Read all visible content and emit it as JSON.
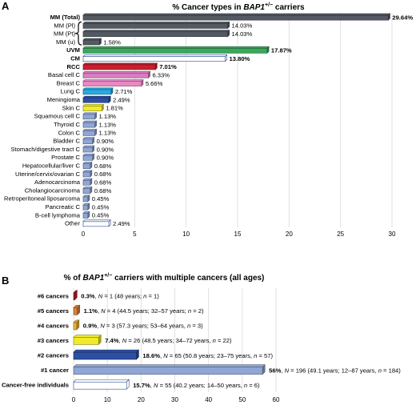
{
  "panels": {
    "a_label": "A",
    "b_label": "B"
  },
  "colors": {
    "total": "#545a63",
    "uvm": "#3aa85a",
    "cm": "#ffffff",
    "rcc": "#c8202f",
    "basal": "#d97cc0",
    "breast": "#e68ac4",
    "lung": "#29a9df",
    "meningioma": "#2c4fa2",
    "skin": "#f0ea2a",
    "other": "#8fa6d6",
    "c6": "#c8202f",
    "c5": "#d9803c",
    "c4": "#e8b23c",
    "c3": "#f0ea2a",
    "c2": "#2c4fa2",
    "c1": "#8fa6d6",
    "free": "#ffffff",
    "outline": "#2a4d8f"
  },
  "chart_data": [
    {
      "type": "bar",
      "orientation": "horizontal",
      "title_pre": "% Cancer types in ",
      "title_gene": "BAP1",
      "title_sup": "+/−",
      "title_post": " carriers",
      "xlim": [
        0,
        30
      ],
      "xticks": [
        "0",
        "5",
        "10",
        "15",
        "20",
        "25",
        "30"
      ],
      "grid": true,
      "categories": [
        "MM (Total)",
        "MM (Pl)",
        "MM (Pt)",
        "MM (u)",
        "UVM",
        "CM",
        "RCC",
        "Basal cell C",
        "Breast C",
        "Lung C",
        "Meningioma",
        "Skin C",
        "Squamous cell C",
        "Thyroid C",
        "Colon C",
        "Bladder C",
        "Stomach/digestive tract C",
        "Prostate C",
        "Hepatocellular/liver C",
        "Uterine/cervix/ovarian C",
        "Adenocarcinoma",
        "Cholangiocarcinoma",
        "Retroperitoneal liposarcoma",
        "Pancreatic C",
        "B-cell lymphoma",
        "Other"
      ],
      "values": [
        29.64,
        14.03,
        14.03,
        1.58,
        17.87,
        13.8,
        7.01,
        6.33,
        5.66,
        2.71,
        2.49,
        1.81,
        1.13,
        1.13,
        1.13,
        0.9,
        0.9,
        0.9,
        0.68,
        0.68,
        0.68,
        0.68,
        0.45,
        0.45,
        0.45,
        2.49
      ],
      "value_labels": [
        "29.64%",
        "14.03%",
        "14.03%",
        "1.58%",
        "17.87%",
        "13.80%",
        "7.01%",
        "6.33%",
        "5.66%",
        "2.71%",
        "2.49%",
        "1.81%",
        "1.13%",
        "1.13%",
        "1.13%",
        "0.90%",
        "0.90%",
        "0.90%",
        "0.68%",
        "0.68%",
        "0.68%",
        "0.68%",
        "0.45%",
        "0.45%",
        "0.45%",
        "2.49%"
      ],
      "bold": [
        true,
        false,
        false,
        false,
        true,
        true,
        true,
        false,
        false,
        false,
        false,
        false,
        false,
        false,
        false,
        false,
        false,
        false,
        false,
        false,
        false,
        false,
        false,
        false,
        false,
        false
      ],
      "bar_colors": [
        "total",
        "total",
        "total",
        "total",
        "uvm",
        "cm",
        "rcc",
        "basal",
        "breast",
        "lung",
        "meningioma",
        "skin",
        "other",
        "other",
        "other",
        "other",
        "other",
        "other",
        "other",
        "other",
        "other",
        "other",
        "other",
        "other",
        "other",
        "cm"
      ]
    },
    {
      "type": "bar",
      "orientation": "horizontal",
      "title_pre": "% of ",
      "title_gene": "BAP1",
      "title_sup": "+/−",
      "title_post": " carriers with multiple cancers (all ages)",
      "xlim": [
        0,
        60
      ],
      "xticks": [
        "0",
        "10",
        "20",
        "30",
        "40",
        "50",
        "60"
      ],
      "grid": true,
      "categories": [
        "#6 cancers",
        "#5 cancers",
        "#4 cancers",
        "#3 cancers",
        "#2 cancers",
        "#1 cancer",
        "Cancer-free individuals"
      ],
      "values": [
        0.3,
        1.1,
        0.9,
        7.4,
        18.6,
        56,
        15.7
      ],
      "pct_labels": [
        "0.3%",
        "1.1%",
        "0.9%",
        "7.4%",
        "18.6%",
        "56%",
        "15.7%"
      ],
      "detail_labels": [
        [
          [
            ", ",
            false
          ],
          [
            "N",
            true
          ],
          [
            " = 1 (48 years; ",
            false
          ],
          [
            "n",
            true
          ],
          [
            " = 1)",
            false
          ]
        ],
        [
          [
            ", ",
            false
          ],
          [
            "N",
            true
          ],
          [
            " = 4 (44.5 years; 32–57 years; ",
            false
          ],
          [
            "n",
            true
          ],
          [
            " = 2)",
            false
          ]
        ],
        [
          [
            ", ",
            false
          ],
          [
            "N",
            true
          ],
          [
            " = 3 (57.3 years; 53–64 years, ",
            false
          ],
          [
            "n",
            true
          ],
          [
            " = 3)",
            false
          ]
        ],
        [
          [
            ", ",
            false
          ],
          [
            "N",
            true
          ],
          [
            " = 26 (48.5 years; 34–72 years, ",
            false
          ],
          [
            "n",
            true
          ],
          [
            " = 22)",
            false
          ]
        ],
        [
          [
            ", ",
            false
          ],
          [
            "N",
            true
          ],
          [
            " = 65 (50.8 years; 23–75 years, ",
            false
          ],
          [
            "n",
            true
          ],
          [
            " = 57)",
            false
          ]
        ],
        [
          [
            ", ",
            false
          ],
          [
            "N",
            true
          ],
          [
            " = 196 (49.1 years; 12–87 years, ",
            false
          ],
          [
            "n",
            true
          ],
          [
            " = 184)",
            false
          ]
        ],
        [
          [
            ", ",
            false
          ],
          [
            "N",
            true
          ],
          [
            " = 55 (40.2 years; 14–50 years, ",
            false
          ],
          [
            "n",
            true
          ],
          [
            " = 6)",
            false
          ]
        ]
      ],
      "bar_colors": [
        "c6",
        "c5",
        "c4",
        "c3",
        "c2",
        "c1",
        "free"
      ]
    }
  ]
}
